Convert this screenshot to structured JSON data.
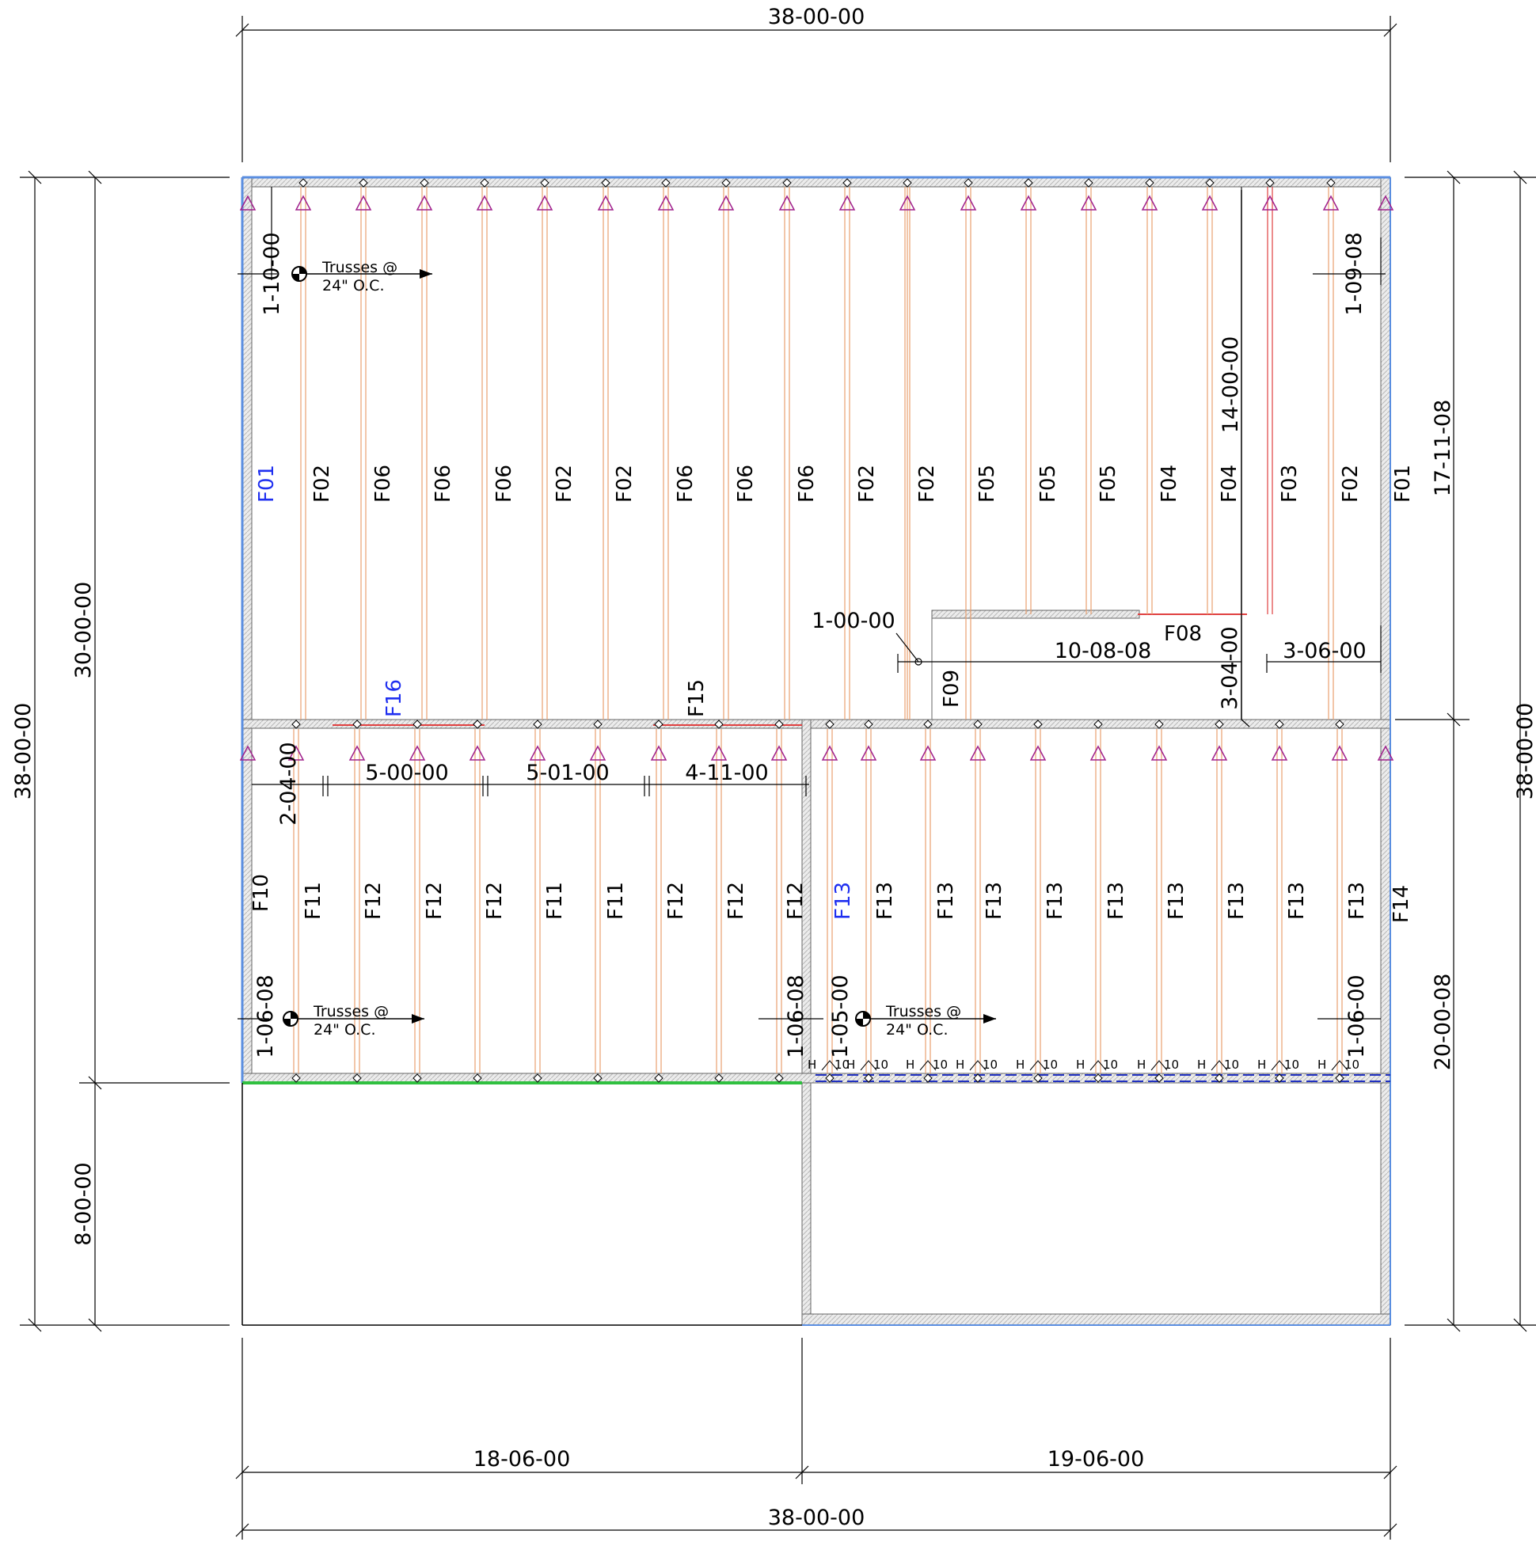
{
  "dimensions": {
    "top_overall": "38-00-00",
    "bottom_overall": "38-00-00",
    "bottom_left": "18-06-00",
    "bottom_right": "19-06-00",
    "left_overall": "38-00-00",
    "left_upper": "30-00-00",
    "left_lower": "8-00-00",
    "right_overall": "38-00-00",
    "right_upper": "17-11-08",
    "right_lower": "20-00-08",
    "d_1_10_00": "1-10-00",
    "d_1_09_08": "1-09-08",
    "d_14_00_00": "14-00-00",
    "d_1_00_00": "1-00-00",
    "d_10_08_08": "10-08-08",
    "d_3_06_00": "3-06-00",
    "d_3_04_00": "3-04-00",
    "d_2_04_00": "2-04-00",
    "d_5_00_00": "5-00-00",
    "d_5_01_00": "5-01-00",
    "d_4_11_00": "4-11-00",
    "d_1_06_08_left": "1-06-08",
    "d_1_06_08_mid": "1-06-08",
    "d_1_05_00": "1-05-00",
    "d_1_06_00": "1-06-00"
  },
  "notes": {
    "trusses_1": "Trusses @",
    "spacing_1": "24\" O.C.",
    "trusses_2": "Trusses @",
    "spacing_2": "24\" O.C.",
    "trusses_3": "Trusses @",
    "spacing_3": "24\" O.C."
  },
  "upper_truss_labels": [
    "F01",
    "F02",
    "F06",
    "F06",
    "F06",
    "F02",
    "F02",
    "F06",
    "F06",
    "F06",
    "F02",
    "F02",
    "F05",
    "F05",
    "F05",
    "F04",
    "F04",
    "F03",
    "F02",
    "F01"
  ],
  "lower_truss_labels": [
    "F10",
    "F11",
    "F12",
    "F12",
    "F12",
    "F11",
    "F11",
    "F12",
    "F12",
    "F12",
    "F13",
    "F13",
    "F13",
    "F13",
    "F13",
    "F13",
    "F13",
    "F13",
    "F13",
    "F13",
    "F14"
  ],
  "other_labels": {
    "f16": "F16",
    "f15": "F15",
    "f08": "F08",
    "f09": "F09"
  },
  "hanger_label": "H",
  "hanger_size": "10",
  "colors": {
    "truss": "#e8a070",
    "girder": "#e04040",
    "wall": "#d0d0d0",
    "bearing_blue": "#5a8ee0",
    "bearing_green": "#30c040",
    "marker": "#a0208c",
    "highlight_label": "#1f2ff0"
  }
}
